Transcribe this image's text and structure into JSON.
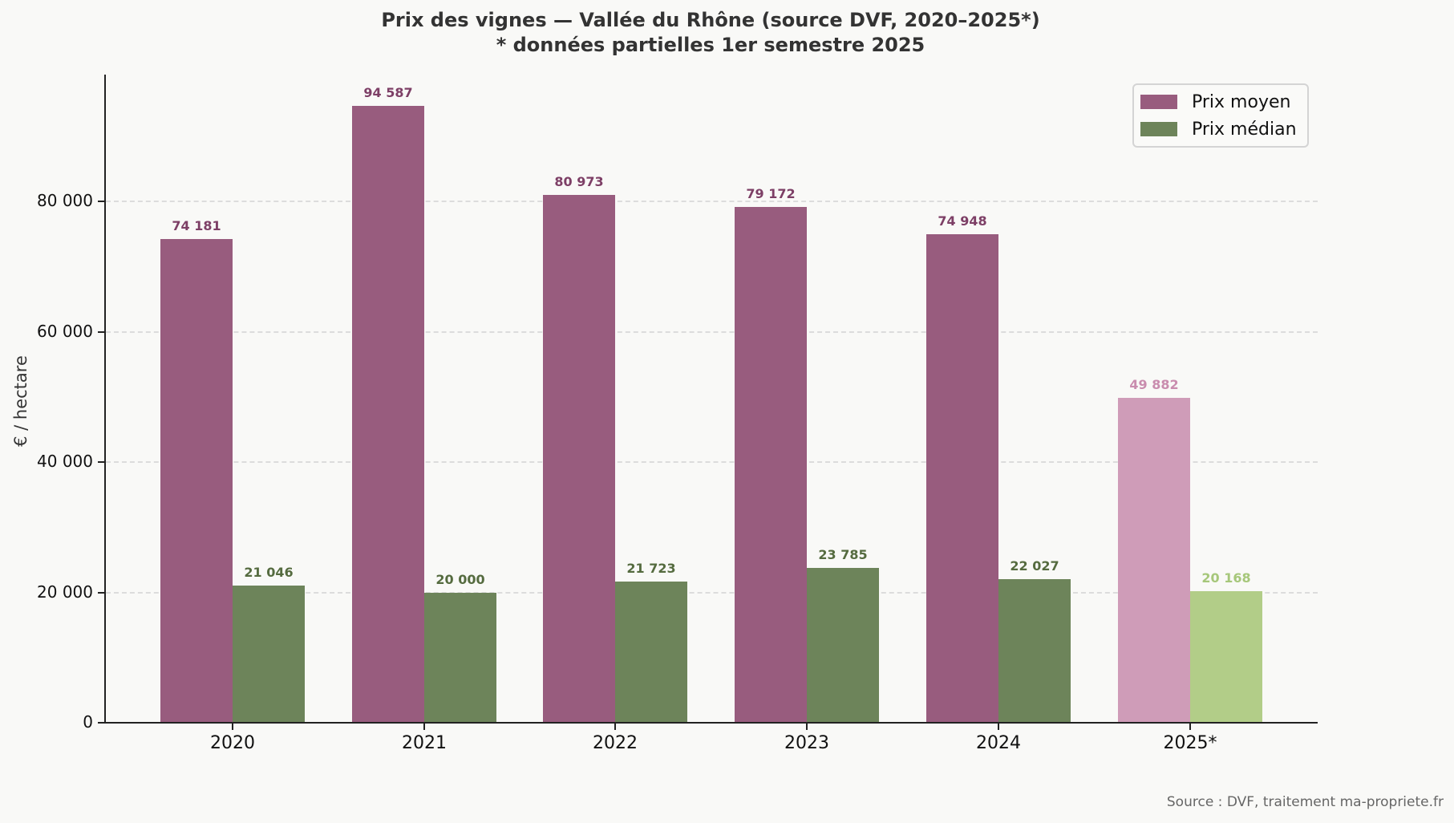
{
  "title": {
    "line1": "Prix des vignes — Vallée du Rhône (source DVF, 2020–2025*)",
    "line2": "* données partielles 1er semestre 2025"
  },
  "axes": {
    "ylabel": "€ / hectare",
    "yticks": [
      "0",
      "20 000",
      "40 000",
      "60 000",
      "80 000"
    ],
    "xticks": [
      "2020",
      "2021",
      "2022",
      "2023",
      "2024",
      "2025*"
    ]
  },
  "legend": {
    "items": [
      {
        "label": "Prix moyen",
        "color": "#985c7e"
      },
      {
        "label": "Prix médian",
        "color": "#6d845a"
      }
    ]
  },
  "labels": {
    "moyen": [
      "74 181",
      "94 587",
      "80 973",
      "79 172",
      "74 948",
      "49 882"
    ],
    "median": [
      "21 046",
      "20 000",
      "21 723",
      "23 785",
      "22 027",
      "20 168"
    ]
  },
  "colors": {
    "moyen": "#985c7e",
    "median": "#6d845a",
    "moyen_partial": "#cf9cb8",
    "median_partial": "#b2cd88",
    "moyen_label": "#7d3f66",
    "median_label": "#556b3f",
    "moyen_partial_label": "#c98cae",
    "median_partial_label": "#a6c77a"
  },
  "source": "Source : DVF, traitement ma-propriete.fr",
  "chart_data": {
    "type": "bar",
    "title": "Prix des vignes — Vallée du Rhône (source DVF, 2020–2025*)",
    "subtitle": "* données partielles 1er semestre 2025",
    "categories": [
      "2020",
      "2021",
      "2022",
      "2023",
      "2024",
      "2025*"
    ],
    "series": [
      {
        "name": "Prix moyen",
        "values": [
          74181,
          94587,
          80973,
          79172,
          74948,
          49882
        ]
      },
      {
        "name": "Prix médian",
        "values": [
          21046,
          20000,
          21723,
          23785,
          22027,
          20168
        ]
      }
    ],
    "xlabel": "",
    "ylabel": "€ / hectare",
    "ylim": [
      0,
      100000
    ],
    "yticks": [
      0,
      20000,
      40000,
      60000,
      80000
    ],
    "grid": "y, dashed",
    "legend_position": "upper right",
    "annotations": [
      "2025* = données partielles 1er semestre 2025 (lighter colors)",
      "Source : DVF, traitement ma-propriete.fr"
    ]
  }
}
